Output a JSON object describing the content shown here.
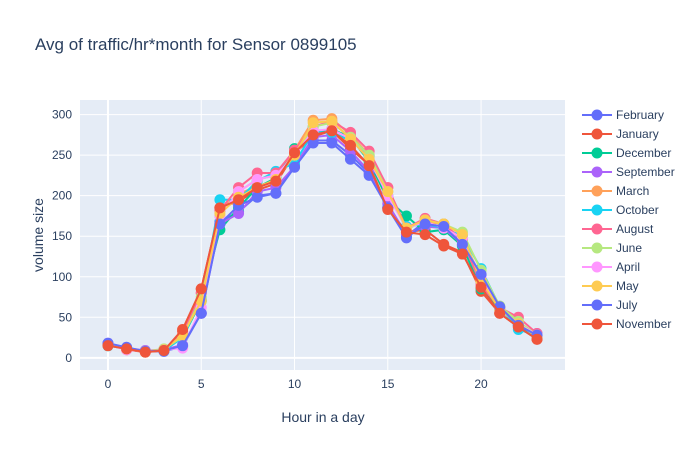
{
  "chart_data": {
    "type": "line",
    "title": "Avg of traffic/hr*month for Sensor 0899105",
    "xlabel": "Hour in a day",
    "ylabel": "volume size",
    "xlim": [
      -1.5,
      24.5
    ],
    "ylim": [
      -15,
      318
    ],
    "xticks": [
      0,
      5,
      10,
      15,
      20
    ],
    "yticks": [
      0,
      50,
      100,
      150,
      200,
      250,
      300
    ],
    "grid": true,
    "legend_position": "right",
    "plot_bgcolor": "#e5ecf6",
    "x": [
      0,
      1,
      2,
      3,
      4,
      5,
      6,
      7,
      8,
      9,
      10,
      11,
      12,
      13,
      14,
      15,
      16,
      17,
      18,
      19,
      20,
      21,
      22,
      23
    ],
    "series": [
      {
        "name": "February",
        "color": "#636efa",
        "values": [
          17,
          12,
          8,
          8,
          14,
          55,
          168,
          180,
          200,
          203,
          238,
          268,
          268,
          250,
          228,
          185,
          150,
          168,
          160,
          142,
          102,
          62,
          40,
          27
        ]
      },
      {
        "name": "January",
        "color": "#ef553b",
        "values": [
          17,
          10,
          7,
          9,
          32,
          85,
          185,
          193,
          207,
          215,
          252,
          273,
          280,
          258,
          238,
          185,
          155,
          158,
          140,
          130,
          82,
          55,
          38,
          23
        ]
      },
      {
        "name": "December",
        "color": "#00cc96",
        "values": [
          15,
          11,
          8,
          9,
          25,
          70,
          158,
          185,
          210,
          222,
          258,
          278,
          282,
          272,
          242,
          195,
          175,
          155,
          158,
          138,
          85,
          60,
          40,
          25
        ]
      },
      {
        "name": "September",
        "color": "#ab63fa",
        "values": [
          18,
          12,
          9,
          10,
          16,
          55,
          165,
          178,
          205,
          210,
          236,
          272,
          275,
          255,
          230,
          190,
          152,
          162,
          160,
          140,
          98,
          62,
          40,
          30
        ]
      },
      {
        "name": "March",
        "color": "#ffa15a",
        "values": [
          16,
          11,
          7,
          10,
          28,
          80,
          182,
          202,
          212,
          218,
          256,
          293,
          295,
          275,
          250,
          210,
          160,
          168,
          165,
          145,
          92,
          60,
          42,
          26
        ]
      },
      {
        "name": "October",
        "color": "#19d3f3",
        "values": [
          15,
          12,
          8,
          9,
          25,
          72,
          195,
          195,
          218,
          230,
          240,
          278,
          278,
          268,
          248,
          200,
          162,
          165,
          160,
          150,
          110,
          63,
          35,
          27
        ]
      },
      {
        "name": "August",
        "color": "#ff6692",
        "values": [
          16,
          11,
          8,
          10,
          30,
          80,
          182,
          210,
          228,
          228,
          256,
          285,
          292,
          278,
          255,
          210,
          160,
          172,
          165,
          145,
          90,
          62,
          50,
          30
        ]
      },
      {
        "name": "June",
        "color": "#b6e880",
        "values": [
          16,
          12,
          8,
          11,
          26,
          75,
          175,
          205,
          220,
          225,
          250,
          285,
          290,
          272,
          250,
          205,
          158,
          170,
          165,
          155,
          108,
          64,
          45,
          28
        ]
      },
      {
        "name": "April",
        "color": "#ff97ff",
        "values": [
          16,
          10,
          8,
          10,
          12,
          62,
          175,
          205,
          220,
          225,
          250,
          280,
          282,
          270,
          245,
          200,
          160,
          168,
          160,
          148,
          100,
          60,
          42,
          28
        ]
      },
      {
        "name": "May",
        "color": "#fecb52",
        "values": [
          16,
          11,
          8,
          10,
          28,
          70,
          178,
          198,
          210,
          220,
          250,
          290,
          292,
          270,
          245,
          205,
          160,
          170,
          165,
          152,
          95,
          60,
          42,
          26
        ]
      },
      {
        "name": "July",
        "color": "#636efa",
        "values": [
          18,
          13,
          8,
          9,
          15,
          55,
          165,
          188,
          198,
          203,
          235,
          265,
          265,
          245,
          225,
          185,
          148,
          165,
          162,
          140,
          103,
          63,
          40,
          28
        ]
      },
      {
        "name": "November",
        "color": "#ef553b",
        "values": [
          15,
          11,
          7,
          9,
          35,
          85,
          185,
          195,
          210,
          218,
          253,
          275,
          280,
          262,
          237,
          183,
          155,
          152,
          138,
          128,
          87,
          55,
          38,
          23
        ]
      }
    ]
  }
}
